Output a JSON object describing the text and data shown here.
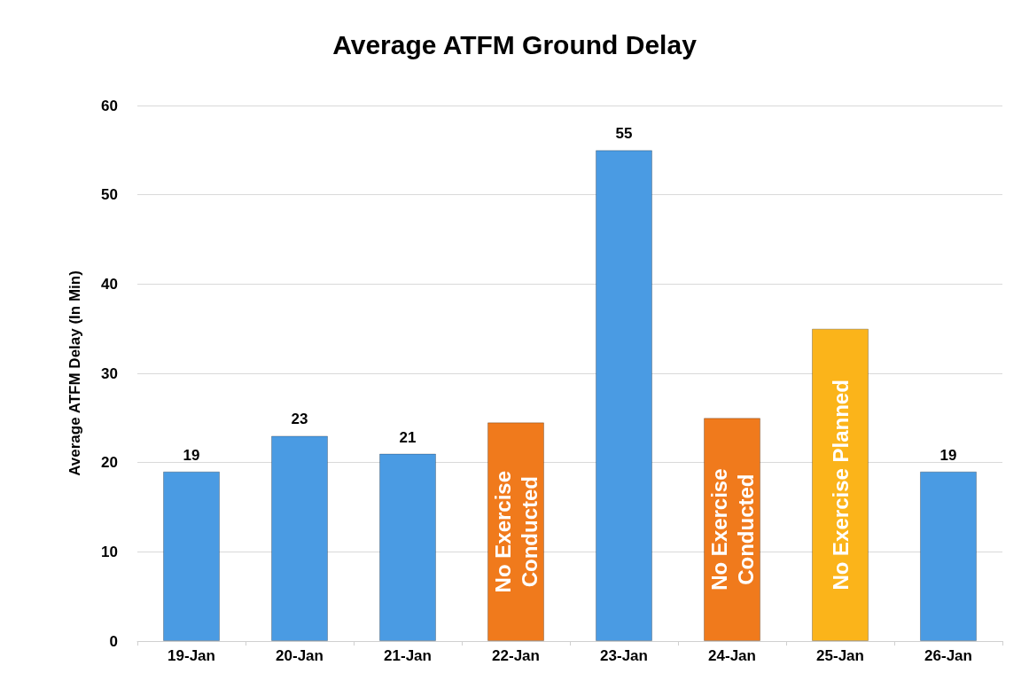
{
  "chart_data": {
    "type": "bar",
    "title": "Average ATFM Ground Delay",
    "ylabel": "Average ATFM Delay (In Min)",
    "categories": [
      "19-Jan",
      "20-Jan",
      "21-Jan",
      "22-Jan",
      "23-Jan",
      "24-Jan",
      "25-Jan",
      "26-Jan"
    ],
    "series": [
      {
        "color": "#4a9be3",
        "values": [
          19,
          23,
          21,
          null,
          55,
          null,
          null,
          19
        ],
        "value_labels": [
          "19",
          "23",
          "21",
          null,
          "55",
          null,
          null,
          "19"
        ]
      },
      {
        "colors": [
          "#f07a1c",
          "#f07a1c",
          "#f07a1c",
          "#f07a1c",
          "#f07a1c",
          "#f07a1c",
          "#fbb41a",
          "#f07a1c"
        ],
        "values": [
          null,
          null,
          null,
          24.5,
          null,
          25,
          35,
          null
        ],
        "value_labels": [
          null,
          null,
          null,
          "No Exercise\nConducted",
          null,
          "No Exercise\nConducted",
          "No Exercise Planned",
          null
        ]
      }
    ],
    "ylim": [
      0,
      60
    ],
    "yticks": [
      0,
      10,
      20,
      30,
      40,
      50,
      60
    ],
    "grid": "y"
  }
}
